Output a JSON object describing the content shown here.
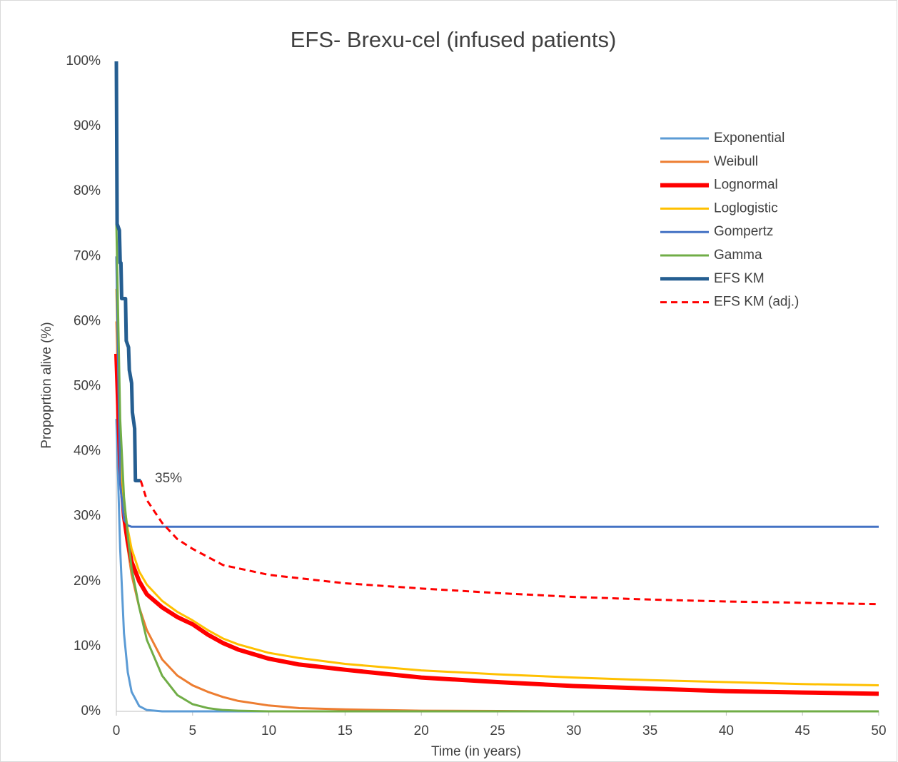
{
  "chart_data": {
    "type": "line",
    "title": "EFS- Brexu-cel (infused patients)",
    "x_label": "Time (in years)",
    "y_label": "Propoprtion alive (%)",
    "annotation": "35%",
    "xlim": [
      0,
      50
    ],
    "xticks": [
      0,
      5,
      10,
      15,
      20,
      25,
      30,
      35,
      40,
      45,
      50
    ],
    "ylim": [
      0,
      100
    ],
    "yticks": [
      {
        "value": 0,
        "label": "0%"
      },
      {
        "value": 10,
        "label": "10%"
      },
      {
        "value": 20,
        "label": "20%"
      },
      {
        "value": 30,
        "label": "30%"
      },
      {
        "value": 40,
        "label": "40%"
      },
      {
        "value": 50,
        "label": "50%"
      },
      {
        "value": 60,
        "label": "60%"
      },
      {
        "value": 70,
        "label": "70%"
      },
      {
        "value": 80,
        "label": "80%"
      },
      {
        "value": 90,
        "label": "90%"
      },
      {
        "value": 100,
        "label": "100%"
      }
    ],
    "grid": false,
    "legend": "upper right",
    "x": [
      0,
      0.25,
      0.5,
      0.75,
      1,
      1.5,
      2,
      3,
      4,
      5,
      6,
      7,
      8,
      10,
      12,
      15,
      20,
      25,
      30,
      35,
      40,
      45,
      50
    ],
    "series": [
      {
        "name": "Exponential",
        "color": "#5b9bd5",
        "line_width": 3,
        "values": [
          45,
          25,
          12,
          6,
          3,
          0.8,
          0.2,
          0,
          0,
          0,
          0,
          0,
          0,
          0,
          0,
          0,
          0,
          0,
          0,
          0,
          0,
          0,
          0
        ]
      },
      {
        "name": "Weibull",
        "color": "#ed7d31",
        "line_width": 3,
        "values": [
          60,
          40,
          30,
          25,
          21,
          16,
          12.5,
          8,
          5.5,
          4,
          3,
          2.2,
          1.6,
          0.9,
          0.5,
          0.3,
          0.1,
          0.05,
          0,
          0,
          0,
          0,
          0
        ]
      },
      {
        "name": "Lognormal",
        "color": "#ff0000",
        "line_width": 6,
        "values": [
          55,
          38,
          30,
          26,
          23,
          20,
          18,
          16,
          14.5,
          13.4,
          11.8,
          10.5,
          9.5,
          8.1,
          7.2,
          6.4,
          5.2,
          4.5,
          3.9,
          3.5,
          3.1,
          2.9,
          2.7
        ]
      },
      {
        "name": "Loglogistic",
        "color": "#ffc000",
        "line_width": 3,
        "values": [
          65,
          40,
          32,
          28,
          25,
          21.5,
          19.5,
          17,
          15.3,
          14,
          12.5,
          11.2,
          10.3,
          9,
          8.2,
          7.3,
          6.3,
          5.7,
          5.2,
          4.8,
          4.5,
          4.2,
          4
        ]
      },
      {
        "name": "Gompertz",
        "color": "#4472c4",
        "line_width": 3,
        "values": [
          70,
          35,
          29.5,
          28.6,
          28.4,
          28.4,
          28.4,
          28.4,
          28.4,
          28.4,
          28.4,
          28.4,
          28.4,
          28.4,
          28.4,
          28.4,
          28.4,
          28.4,
          28.4,
          28.4,
          28.4,
          28.4,
          28.4
        ]
      },
      {
        "name": "Gamma",
        "color": "#70ad47",
        "line_width": 3,
        "values": [
          75,
          45,
          33,
          27,
          22,
          16,
          11,
          5.5,
          2.5,
          1.1,
          0.5,
          0.2,
          0.1,
          0,
          0,
          0,
          0,
          0,
          0,
          0,
          0,
          0,
          0
        ]
      },
      {
        "name": "EFS KM",
        "color": "#255e91",
        "line_width": 5,
        "x": [
          0,
          0.05,
          0.2,
          0.25,
          0.3,
          0.35,
          0.6,
          0.65,
          0.8,
          0.85,
          1.0,
          1.05,
          1.2,
          1.25,
          1.6
        ],
        "values": [
          100,
          75,
          74,
          69,
          69,
          63.5,
          63.5,
          57,
          56,
          52.5,
          50.5,
          46,
          43.5,
          35.5,
          35.5
        ]
      },
      {
        "name": "EFS KM (adj.)",
        "color": "#ff0000",
        "line_width": 3,
        "dash": true,
        "x": [
          1.6,
          2,
          3,
          4,
          5,
          7,
          10,
          15,
          20,
          25,
          30,
          35,
          40,
          45,
          50
        ],
        "values": [
          35.5,
          32.5,
          29,
          26.5,
          25,
          22.5,
          21,
          19.7,
          18.9,
          18.2,
          17.6,
          17.2,
          16.9,
          16.7,
          16.5
        ]
      }
    ]
  }
}
